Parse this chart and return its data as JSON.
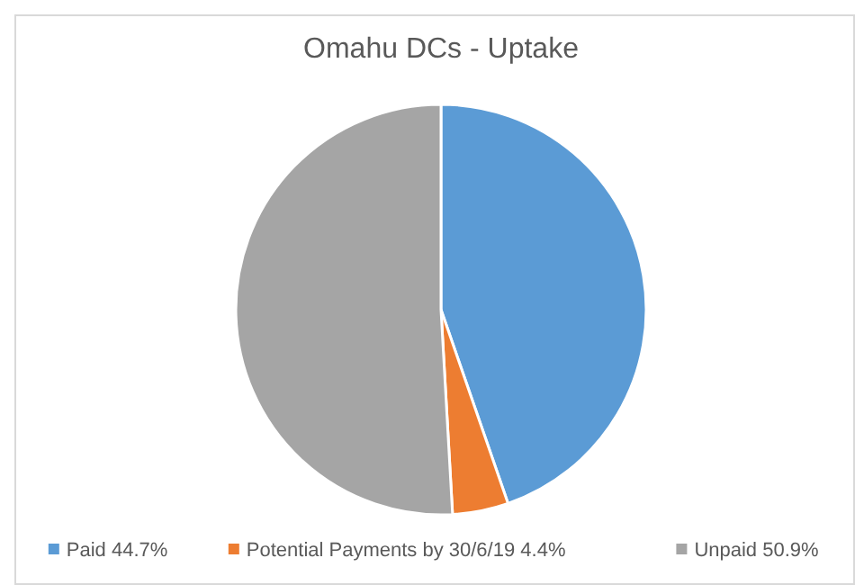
{
  "chart_data": {
    "type": "pie",
    "title": "Omahu DCs - Uptake",
    "categories": [
      "Paid 44.7%",
      "Potential Payments by 30/6/19 4.4%",
      "Unpaid 50.9%"
    ],
    "values": [
      44.7,
      4.4,
      50.9
    ],
    "colors": [
      "#5b9bd5",
      "#ed7d31",
      "#a5a5a5"
    ],
    "legend": "bottom"
  }
}
